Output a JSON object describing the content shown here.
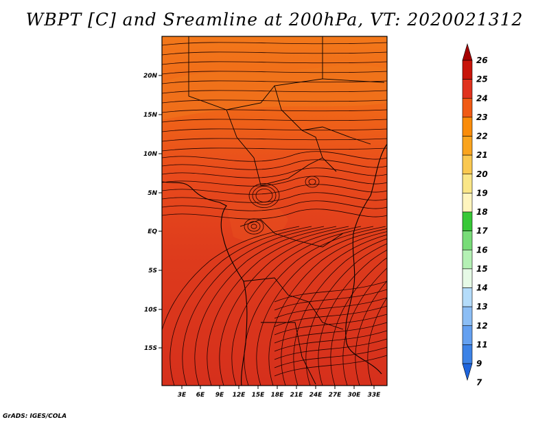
{
  "title": "WBPT [C] and Sreamline at 200hPa, VT: 2020021312",
  "credit": "GrADS: IGES/COLA",
  "map": {
    "lat_labels": [
      "20N",
      "15N",
      "10N",
      "5N",
      "EQ",
      "5S",
      "10S",
      "15S"
    ],
    "lon_labels": [
      "3E",
      "6E",
      "9E",
      "12E",
      "15E",
      "18E",
      "21E",
      "24E",
      "27E",
      "30E",
      "33E"
    ],
    "fill_colors": {
      "north": "#f06a10",
      "mid": "#e5401c",
      "south": "#d8301c",
      "lines": "#1a0000"
    }
  },
  "colorbar": {
    "labels": [
      "26",
      "25",
      "24",
      "23",
      "22",
      "21",
      "20",
      "19",
      "18",
      "17",
      "16",
      "15",
      "14",
      "13",
      "12",
      "11",
      "9",
      "7"
    ],
    "colors": [
      "#a50000",
      "#c8140a",
      "#e0321e",
      "#f05a14",
      "#fa8c0a",
      "#faa41e",
      "#fac850",
      "#fae687",
      "#fff5be",
      "#37c837",
      "#78dc78",
      "#b4f0b4",
      "#e6fae6",
      "#b4dcfa",
      "#8cbef5",
      "#64a0f0",
      "#3c82e6",
      "#1e64dc"
    ]
  }
}
